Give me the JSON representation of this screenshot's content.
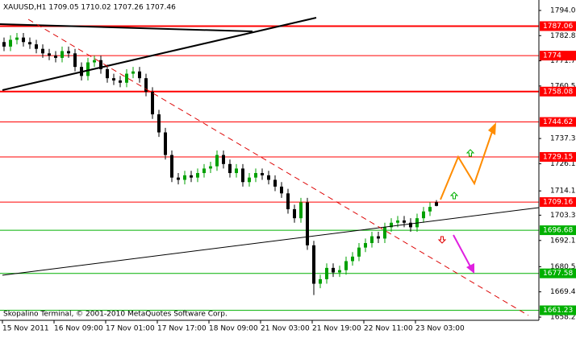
{
  "chart_data": {
    "type": "candlestick",
    "title": "XAUUSD,H1  1709.05 1710.02 1707.26 1707.46",
    "footer": "Skopalino Terminal, © 2001-2010 MetaQuotes Software Corp.",
    "categories": [
      "15 Nov 2011",
      null,
      null,
      null,
      null,
      null,
      null,
      null,
      "16 Nov 09:00",
      null,
      null,
      null,
      null,
      null,
      null,
      null,
      "17 Nov 01:00",
      null,
      null,
      null,
      null,
      null,
      null,
      null,
      "17 Nov 17:00",
      null,
      null,
      null,
      null,
      null,
      null,
      null,
      "18 Nov 09:00",
      null,
      null,
      null,
      null,
      null,
      null,
      null,
      "21 Nov 03:00",
      null,
      null,
      null,
      null,
      null,
      null,
      null,
      "21 Nov 19:00",
      null,
      null,
      null,
      null,
      null,
      null,
      null,
      "22 Nov 11:00",
      null,
      null,
      null,
      null,
      null,
      null,
      null,
      "23 Nov 03:00",
      null,
      null,
      null
    ],
    "open": [
      1780,
      1778,
      1781,
      1782,
      1780,
      1779,
      1777,
      1775,
      1774,
      1773,
      1776,
      1775,
      1769,
      1765,
      1771,
      1772,
      1768,
      1764,
      1763,
      1762,
      1766,
      1767,
      1764,
      1758,
      1748,
      1740,
      1730,
      1720,
      1719,
      1721,
      1720,
      1722,
      1724,
      1725,
      1730,
      1726,
      1722,
      1724,
      1718,
      1720,
      1722,
      1721,
      1719,
      1716,
      1713,
      1706,
      1702,
      1709,
      1690,
      1673,
      1675,
      1680,
      1678,
      1679,
      1683,
      1685,
      1689,
      1691,
      1694,
      1693,
      1698,
      1700,
      1701,
      1700,
      1698,
      1702,
      1705,
      1709.05
    ],
    "high": [
      1782,
      1783,
      1784,
      1784,
      1782,
      1781,
      1779,
      1777,
      1776,
      1778,
      1778,
      1777,
      1771,
      1773,
      1774,
      1774,
      1770,
      1766,
      1765,
      1768,
      1769,
      1769,
      1766,
      1760,
      1750,
      1742,
      1732,
      1722,
      1723,
      1723,
      1724,
      1726,
      1727,
      1732,
      1732,
      1728,
      1726,
      1726,
      1722,
      1724,
      1724,
      1723,
      1721,
      1718,
      1715,
      1708,
      1711,
      1711,
      1692,
      1677,
      1682,
      1682,
      1681,
      1685,
      1687,
      1691,
      1693,
      1696,
      1696,
      1700,
      1702,
      1703,
      1703,
      1702,
      1704,
      1707,
      1709,
      1710.02
    ],
    "low": [
      1776,
      1776,
      1779,
      1778,
      1777,
      1775,
      1773,
      1772,
      1771,
      1771,
      1773,
      1767,
      1763,
      1763,
      1769,
      1766,
      1762,
      1761,
      1760,
      1760,
      1764,
      1762,
      1756,
      1746,
      1738,
      1728,
      1718,
      1717,
      1717,
      1718,
      1718,
      1720,
      1722,
      1723,
      1724,
      1720,
      1720,
      1716,
      1716,
      1718,
      1719,
      1717,
      1714,
      1711,
      1704,
      1700,
      1700,
      1688,
      1668,
      1671,
      1673,
      1676,
      1676,
      1677,
      1681,
      1683,
      1687,
      1689,
      1691,
      1691,
      1696,
      1698,
      1698,
      1696,
      1696,
      1700,
      1703,
      1707.26
    ],
    "close": [
      1778,
      1781,
      1782,
      1780,
      1779,
      1777,
      1775,
      1774,
      1773,
      1776,
      1775,
      1769,
      1765,
      1771,
      1772,
      1768,
      1764,
      1763,
      1762,
      1766,
      1767,
      1764,
      1758,
      1748,
      1740,
      1730,
      1720,
      1719,
      1721,
      1720,
      1722,
      1724,
      1725,
      1730,
      1726,
      1722,
      1724,
      1718,
      1720,
      1722,
      1721,
      1719,
      1716,
      1713,
      1706,
      1702,
      1709,
      1690,
      1673,
      1675,
      1680,
      1678,
      1679,
      1683,
      1685,
      1689,
      1691,
      1694,
      1693,
      1698,
      1700,
      1701,
      1700,
      1698,
      1702,
      1705,
      1707,
      1707.46
    ],
    "up_color": "#00a000",
    "down_color": "#000000",
    "ylim": [
      1656.8,
      1798.63
    ],
    "yticks": [
      {
        "value": 1794,
        "label": "1794.00"
      },
      {
        "value": 1782.85,
        "label": "1782.85"
      },
      {
        "value": 1771.7,
        "label": "1771.70"
      },
      {
        "value": 1760.55,
        "label": "1760.55"
      },
      {
        "value": 1737.3,
        "label": "1737.30"
      },
      {
        "value": 1726.15,
        "label": "1726.15"
      },
      {
        "value": 1714.1,
        "label": "1714.10"
      },
      {
        "value": 1703.35,
        "label": "1703.35"
      },
      {
        "value": 1692.15,
        "label": "1692.15"
      },
      {
        "value": 1680.55,
        "label": "1680.55"
      },
      {
        "value": 1669.4,
        "label": "1669.40"
      },
      {
        "value": 1658.2,
        "label": "1658.20"
      }
    ],
    "levels": [
      {
        "value": 1787.06,
        "color": "#ff0000",
        "width": 2
      },
      {
        "value": 1774,
        "color": "#ff0000",
        "width": 1
      },
      {
        "value": 1758.08,
        "color": "#ff0000",
        "width": 2
      },
      {
        "value": 1744.62,
        "color": "#ff0000",
        "width": 1
      },
      {
        "value": 1729.15,
        "color": "#ff0000",
        "width": 1
      },
      {
        "value": 1709.16,
        "color": "#ff0000",
        "width": 1
      },
      {
        "value": 1696.68,
        "color": "#00b000",
        "width": 1
      },
      {
        "value": 1677.58,
        "color": "#00b000",
        "width": 1
      },
      {
        "value": 1661.23,
        "color": "#00b000",
        "width": 1
      }
    ]
  }
}
